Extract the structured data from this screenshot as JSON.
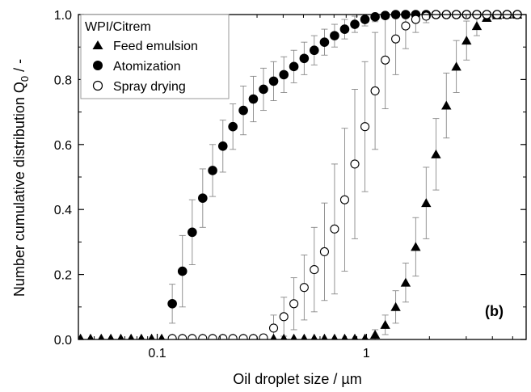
{
  "chart_data": {
    "type": "scatter",
    "x_scale": "log",
    "xlabel": "Oil droplet size / µm",
    "ylabel_main": "Number cumulative distribution Q",
    "ylabel_sub": "0",
    "ylabel_suffix": " / -",
    "xlim": [
      0.042,
      5.8
    ],
    "ylim": [
      0,
      1.0
    ],
    "x_ticks": [
      0.1,
      1
    ],
    "x_tick_labels": [
      "0.1",
      "1"
    ],
    "y_ticks": [
      0,
      0.2,
      0.4,
      0.6,
      0.8,
      1.0
    ],
    "y_tick_labels": [
      "0.0",
      "0.2",
      "0.4",
      "0.6",
      "0.8",
      "1.0"
    ],
    "legend_title": "WPI/Citrem",
    "legend_position": "top-left",
    "panel_label": "(b)",
    "grid": false,
    "series": [
      {
        "name": "Feed emulsion",
        "marker": "triangle-filled",
        "x": [
          0.043,
          0.048,
          0.054,
          0.06,
          0.067,
          0.075,
          0.084,
          0.094,
          0.105,
          0.118,
          0.132,
          0.147,
          0.165,
          0.184,
          0.206,
          0.23,
          0.258,
          0.288,
          0.322,
          0.36,
          0.403,
          0.45,
          0.504,
          0.563,
          0.63,
          0.704,
          0.787,
          0.88,
          0.984,
          1.1,
          1.23,
          1.38,
          1.54,
          1.72,
          1.93,
          2.15,
          2.41,
          2.69,
          3.01,
          3.37,
          3.76,
          4.21,
          4.7,
          5.26
        ],
        "y": [
          0.003,
          0.003,
          0.003,
          0.003,
          0.003,
          0.003,
          0.003,
          0.003,
          0.003,
          0.003,
          0.003,
          0.003,
          0.003,
          0.003,
          0.003,
          0.003,
          0.003,
          0.003,
          0.003,
          0.003,
          0.003,
          0.003,
          0.003,
          0.003,
          0.003,
          0.003,
          0.003,
          0.003,
          0.003,
          0.015,
          0.045,
          0.1,
          0.175,
          0.285,
          0.42,
          0.57,
          0.72,
          0.84,
          0.92,
          0.965,
          0.99,
          0.998,
          1.0,
          1.0
        ],
        "err": [
          0,
          0,
          0,
          0,
          0,
          0,
          0,
          0,
          0,
          0,
          0,
          0,
          0,
          0,
          0,
          0,
          0,
          0,
          0,
          0,
          0,
          0,
          0,
          0,
          0,
          0,
          0,
          0,
          0,
          0.015,
          0.03,
          0.05,
          0.06,
          0.09,
          0.11,
          0.11,
          0.1,
          0.08,
          0.06,
          0.03,
          0.01,
          0.005,
          0,
          0
        ]
      },
      {
        "name": "Atomization",
        "marker": "circle-filled",
        "x": [
          0.118,
          0.132,
          0.147,
          0.165,
          0.184,
          0.206,
          0.23,
          0.258,
          0.288,
          0.322,
          0.36,
          0.403,
          0.45,
          0.504,
          0.563,
          0.63,
          0.704,
          0.787,
          0.88,
          0.984,
          1.1,
          1.23,
          1.38,
          1.54,
          1.72,
          1.93,
          2.15,
          2.41,
          2.69,
          3.01,
          3.37,
          3.76,
          4.21,
          4.7,
          5.26
        ],
        "y": [
          0.11,
          0.21,
          0.33,
          0.435,
          0.52,
          0.595,
          0.655,
          0.705,
          0.74,
          0.77,
          0.795,
          0.815,
          0.84,
          0.865,
          0.89,
          0.915,
          0.935,
          0.955,
          0.97,
          0.985,
          0.993,
          0.997,
          1.0,
          1.0,
          1.0,
          1.0,
          1.0,
          1.0,
          1.0,
          1.0,
          1.0,
          1.0,
          1.0,
          1.0,
          1.0
        ],
        "err": [
          0.06,
          0.11,
          0.1,
          0.09,
          0.08,
          0.08,
          0.07,
          0.075,
          0.07,
          0.065,
          0.06,
          0.055,
          0.05,
          0.05,
          0.045,
          0.04,
          0.035,
          0.03,
          0.025,
          0.02,
          0.015,
          0.01,
          0.005,
          0,
          0,
          0,
          0,
          0,
          0,
          0,
          0,
          0,
          0,
          0,
          0
        ]
      },
      {
        "name": "Spray drying",
        "marker": "circle-open",
        "x": [
          0.118,
          0.132,
          0.147,
          0.165,
          0.184,
          0.206,
          0.23,
          0.258,
          0.288,
          0.322,
          0.36,
          0.403,
          0.45,
          0.504,
          0.563,
          0.63,
          0.704,
          0.787,
          0.88,
          0.984,
          1.1,
          1.23,
          1.38,
          1.54,
          1.72,
          1.93,
          2.15,
          2.41,
          2.69,
          3.01,
          3.37,
          3.76,
          4.21,
          4.7,
          5.26
        ],
        "y": [
          0.003,
          0.003,
          0.003,
          0.003,
          0.003,
          0.003,
          0.003,
          0.003,
          0.003,
          0.005,
          0.035,
          0.07,
          0.11,
          0.16,
          0.215,
          0.27,
          0.34,
          0.43,
          0.54,
          0.655,
          0.765,
          0.86,
          0.925,
          0.965,
          0.985,
          0.995,
          1.0,
          1.0,
          1.0,
          1.0,
          1.0,
          1.0,
          1.0,
          1.0,
          1.0
        ],
        "err": [
          0,
          0,
          0,
          0,
          0,
          0,
          0,
          0,
          0,
          0.01,
          0.04,
          0.06,
          0.08,
          0.1,
          0.13,
          0.15,
          0.2,
          0.22,
          0.23,
          0.2,
          0.18,
          0.15,
          0.11,
          0.07,
          0.04,
          0.02,
          0.01,
          0,
          0,
          0,
          0,
          0,
          0,
          0,
          0
        ]
      }
    ]
  }
}
